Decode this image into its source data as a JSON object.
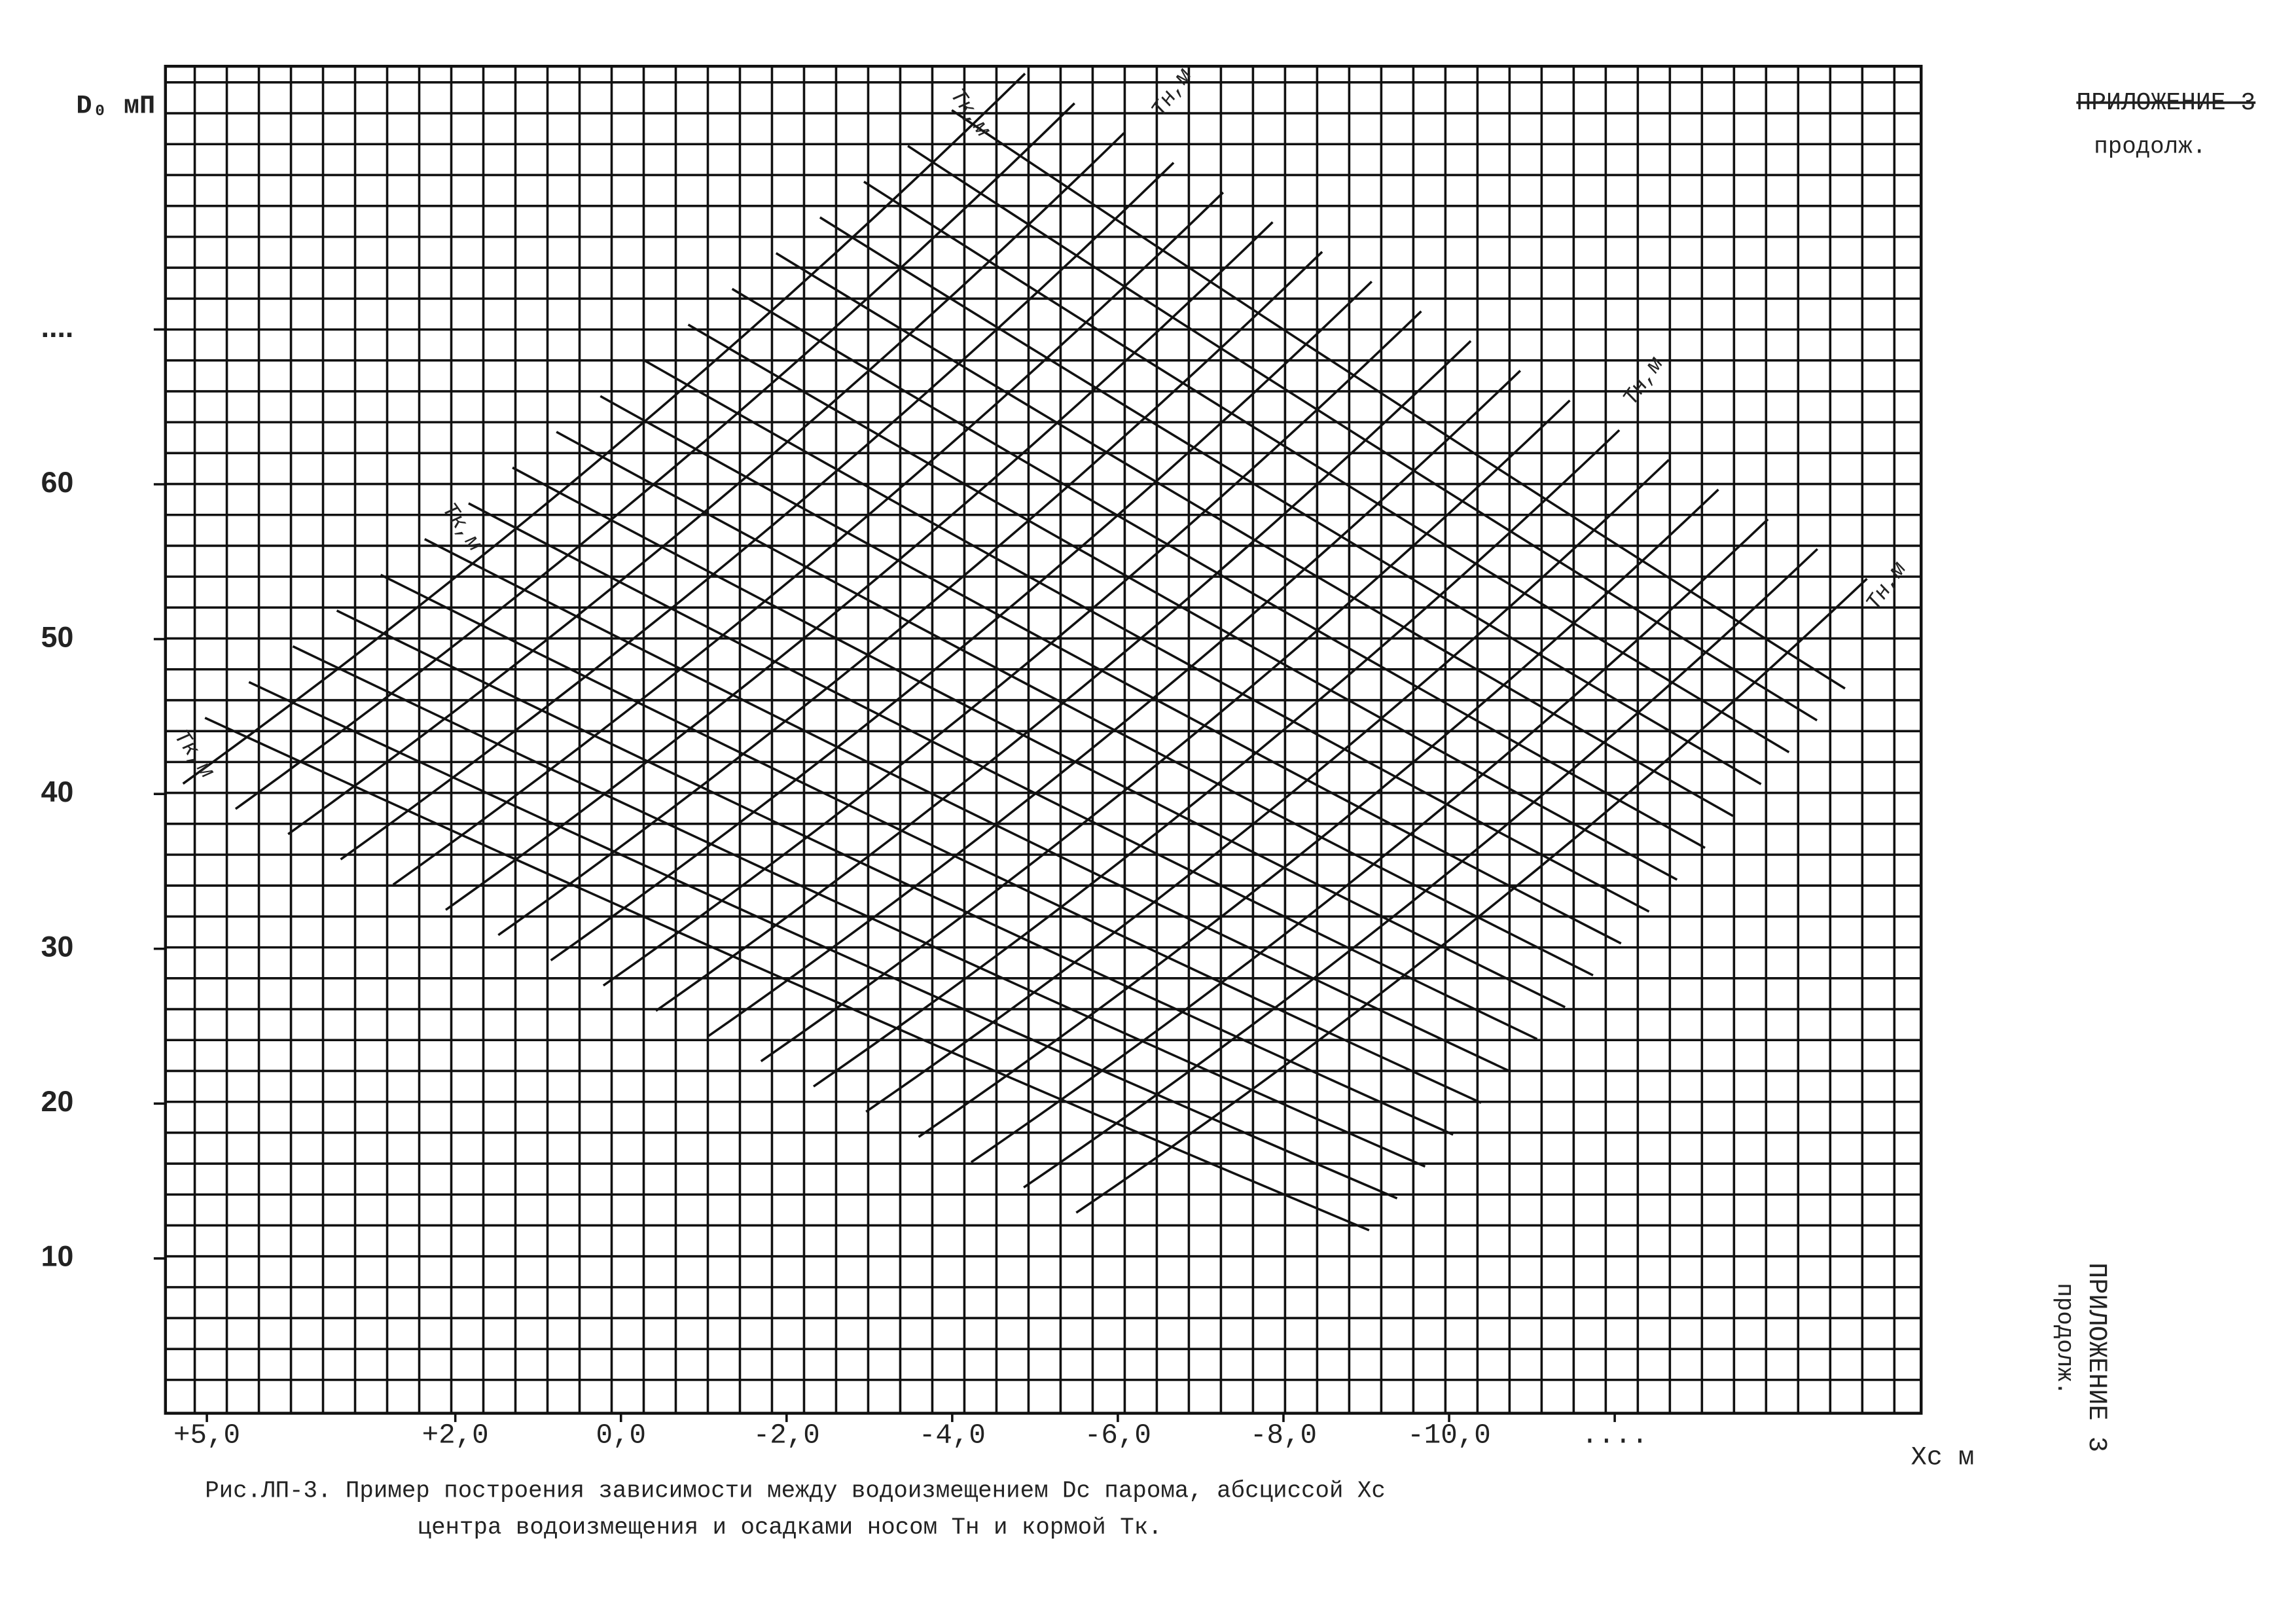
{
  "header": {
    "title": "ПРИЛОЖЕНИЕ 3",
    "subtitle": "продолж."
  },
  "side": {
    "title": "ПРИЛОЖЕНИЕ 3",
    "subtitle": "продолж."
  },
  "chart_data": {
    "type": "nomogram",
    "y_label": "D₀ мП",
    "x_label": "Xc м",
    "ylim": [
      0,
      87
    ],
    "yticks": [
      10,
      20,
      30,
      40,
      50,
      60,
      {
        "value": 70,
        "label": "...."
      }
    ],
    "xlim": [
      5.5,
      -15.7
    ],
    "xticks": [
      {
        "value": 5,
        "label": "+5,0"
      },
      {
        "value": 2,
        "label": "+2,0"
      },
      {
        "value": 0,
        "label": "0,0"
      },
      {
        "value": -2,
        "label": "-2,0"
      },
      {
        "value": -4,
        "label": "-4,0"
      },
      {
        "value": -6,
        "label": "-6,0"
      },
      {
        "value": -8,
        "label": "-8,0"
      },
      {
        "value": -10,
        "label": "-10,0"
      },
      {
        "value": -12,
        "label": "...."
      }
    ],
    "curve_labels": [
      "Tк,м",
      "Tн,м",
      "Tн,м",
      "Tн,м",
      "Tк,м",
      "Tк,м"
    ],
    "caption": [
      "Рис.ЛП-3. Пример построения зависимости между водоизмещением Dс парома, абсциссой Xс",
      "центра водоизмещения и осадками носом Tн  и кормой Tк."
    ]
  }
}
